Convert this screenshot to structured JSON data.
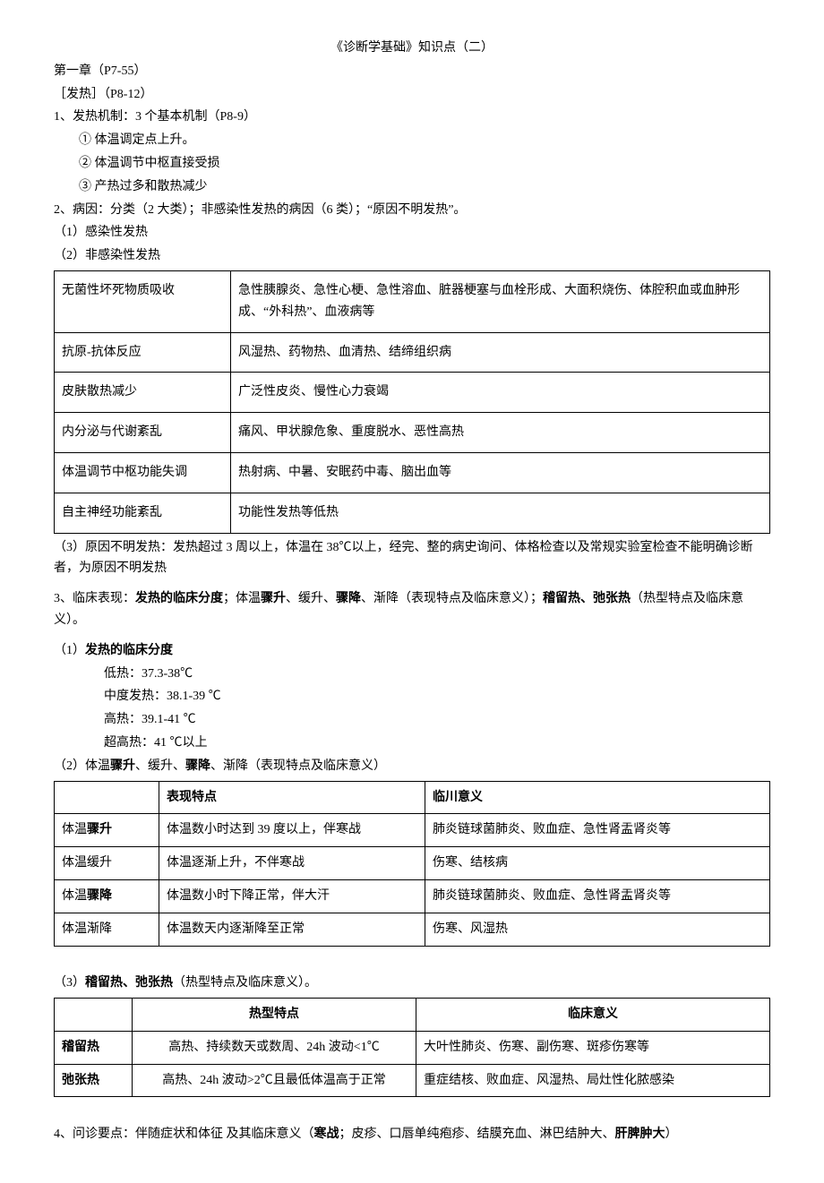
{
  "title": "《诊断学基础》知识点（二）",
  "chapter": "第一章（P7-55）",
  "section1": {
    "heading": "［发热］（P8-12）",
    "item1_line": "1、发热机制：3 个基本机制（P8-9）",
    "item1_sub": [
      "① 体温调定点上升。",
      "② 体温调节中枢直接受损",
      "③ 产热过多和散热减少"
    ],
    "item2_line": "2、病因：分类（2 大类）；非感染性发热的病因（6 类）；“原因不明发热”。",
    "item2_sub1": "（1）感染性发热",
    "item2_sub2": "（2）非感染性发热"
  },
  "table1": {
    "rows": [
      [
        "无菌性坏死物质吸收",
        "急性胰腺炎、急性心梗、急性溶血、脏器梗塞与血栓形成、大面积烧伤、体腔积血或血肿形成、“外科热”、血液病等"
      ],
      [
        "抗原-抗体反应",
        "风湿热、药物热、血清热、结缔组织病"
      ],
      [
        "皮肤散热减少",
        "广泛性皮炎、慢性心力衰竭"
      ],
      [
        "内分泌与代谢紊乱",
        "痛风、甲状腺危象、重度脱水、恶性高热"
      ],
      [
        "体温调节中枢功能失调",
        "热射病、中暑、安眠药中毒、脑出血等"
      ],
      [
        "自主神经功能紊乱",
        "功能性发热等低热"
      ]
    ]
  },
  "note3": "（3）原因不明发热：发热超过 3 周以上，体温在 38℃以上，经完、整的病史询问、体格检查以及常规实验室检查不能明确诊断者，为原因不明发热",
  "item3": {
    "line_prefix": "3、临床表现：",
    "b1": "发热的临床分度",
    "mid1": "；体温",
    "b2": "骤升",
    "mid2": "、缓升、",
    "b3": "骤降",
    "mid3": "、渐降（表现特点及临床意义）；",
    "b4": "稽留热、弛张热",
    "mid4": "（热型特点及临床意义）。",
    "sub1_label": "（1）",
    "sub1_bold": "发热的临床分度",
    "grades": [
      "低热：37.3-38℃",
      "中度发热：38.1-39 ℃",
      "高热：39.1-41 ℃",
      "超高热：41 ℃以上"
    ],
    "sub2_prefix": "（2）体温",
    "sub2_b1": "骤升",
    "sub2_m1": "、缓升、",
    "sub2_b2": "骤降",
    "sub2_suffix": "、渐降（表现特点及临床意义）"
  },
  "table2": {
    "header": [
      "",
      "表现特点",
      "临川意义"
    ],
    "rows": [
      {
        "c0a": "体温",
        "c0b": "骤升",
        "c1": "体温数小时达到 39 度以上，伴寒战",
        "c2": "肺炎链球菌肺炎、败血症、急性肾盂肾炎等"
      },
      {
        "c0a": "体温缓升",
        "c0b": "",
        "c1": "体温逐渐上升，不伴寒战",
        "c2": "伤寒、结核病"
      },
      {
        "c0a": "体温",
        "c0b": "骤降",
        "c1": "体温数小时下降正常，伴大汗",
        "c2": "肺炎链球菌肺炎、败血症、急性肾盂肾炎等"
      },
      {
        "c0a": "体温渐降",
        "c0b": "",
        "c1": "体温数天内逐渐降至正常",
        "c2": "伤寒、风湿热"
      }
    ]
  },
  "sub3_prefix": "（3）",
  "sub3_bold": "稽留热、弛张热",
  "sub3_suffix": "（热型特点及临床意义）。",
  "table3": {
    "header": [
      "",
      "热型特点",
      "临床意义"
    ],
    "rows": [
      {
        "c0": "稽留热",
        "c1": "高热、持续数天或数周、24h 波动<1℃",
        "c2": "大叶性肺炎、伤寒、副伤寒、斑疹伤寒等"
      },
      {
        "c0": "弛张热",
        "c1": "高热、24h 波动>2℃且最低体温高于正常",
        "c2": "重症结核、败血症、风湿热、局灶性化脓感染"
      }
    ]
  },
  "item4": {
    "prefix": "4、问诊要点：伴随症状和体征 及其临床意义（",
    "b1": "寒战",
    "mid": "；皮疹、口唇单纯疱疹、结膜充血、淋巴结肿大、",
    "b2": "肝脾肿大",
    "suffix": "）"
  }
}
